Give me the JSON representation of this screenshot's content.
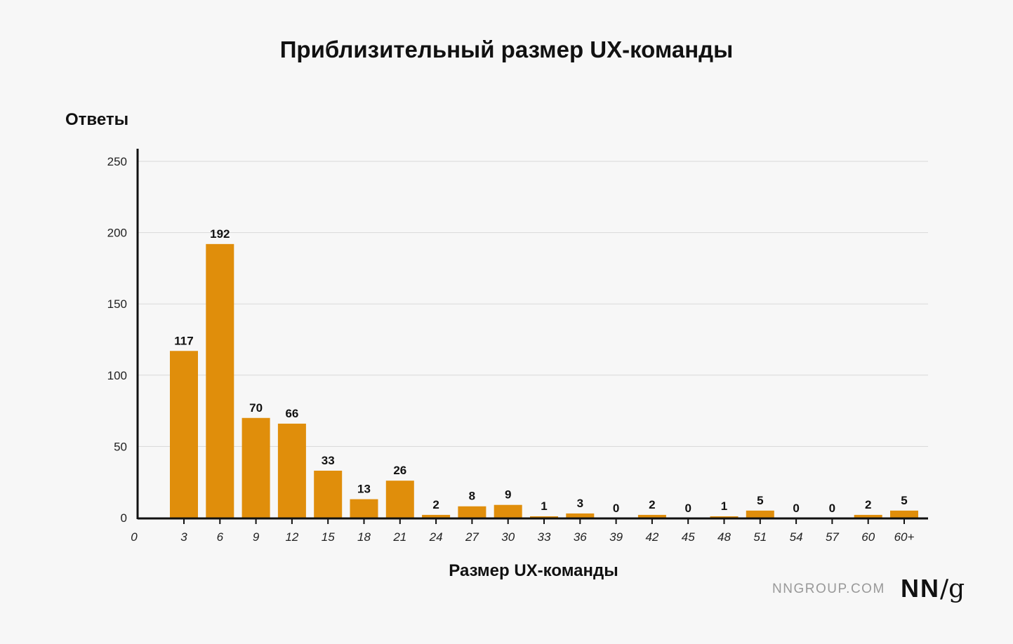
{
  "chart_data": {
    "type": "bar",
    "title": "Приблизительный размер UX-команды",
    "ylabel": "Ответы",
    "xlabel": "Размер UX-команды",
    "x_zero_label": "0",
    "categories": [
      "3",
      "6",
      "9",
      "12",
      "15",
      "18",
      "21",
      "24",
      "27",
      "30",
      "33",
      "36",
      "39",
      "42",
      "45",
      "48",
      "51",
      "54",
      "57",
      "60",
      "60+"
    ],
    "values": [
      117,
      192,
      70,
      66,
      33,
      13,
      26,
      2,
      8,
      9,
      1,
      3,
      0,
      2,
      0,
      1,
      5,
      0,
      0,
      2,
      5
    ],
    "yticks": [
      0,
      50,
      100,
      150,
      200,
      250
    ],
    "ylim": [
      0,
      250
    ],
    "grid": true,
    "bar_color": "#e08e0b"
  },
  "footer": {
    "site": "NNGROUP.COM",
    "logo_nn": "NN",
    "logo_slash": "/",
    "logo_g": "g"
  }
}
